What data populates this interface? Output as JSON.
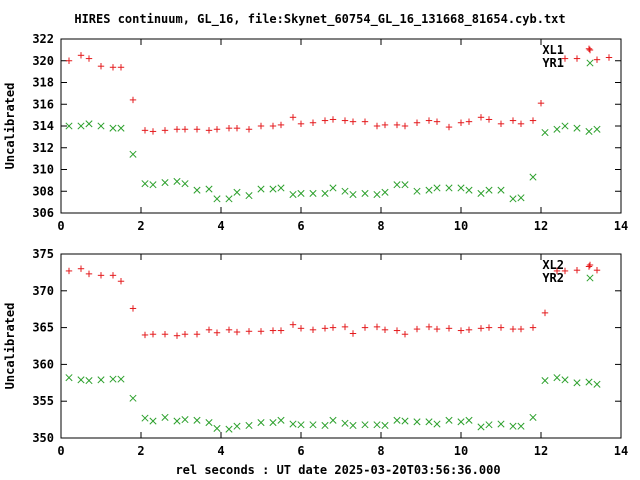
{
  "figure": {
    "title": "HIRES continuum, GL_16, file:Skynet_60754_GL_16_131668_81654.cyb.txt",
    "xlabel": "rel seconds : UT date 2025-03-20T03:56:36.000"
  },
  "colors": {
    "red": "#e41a1c",
    "green": "#2ca02c",
    "axis": "#000000"
  },
  "chart_data": [
    {
      "type": "scatter",
      "ylabel": "Uncalibrated",
      "xlim": [
        0,
        14
      ],
      "ylim": [
        306,
        322
      ],
      "xticks": [
        0,
        2,
        4,
        6,
        8,
        10,
        12,
        14
      ],
      "yticks": [
        306,
        308,
        310,
        312,
        314,
        316,
        318,
        320,
        322
      ],
      "legend_position": "top-right",
      "series": [
        {
          "name": "XL1",
          "marker": "plus",
          "color": "#e41a1c",
          "points": [
            [
              0.2,
              320.0
            ],
            [
              0.5,
              320.5
            ],
            [
              0.7,
              320.2
            ],
            [
              1.0,
              319.5
            ],
            [
              1.3,
              319.4
            ],
            [
              1.5,
              319.4
            ],
            [
              1.8,
              316.4
            ],
            [
              2.1,
              313.6
            ],
            [
              2.3,
              313.5
            ],
            [
              2.6,
              313.6
            ],
            [
              2.9,
              313.7
            ],
            [
              3.1,
              313.7
            ],
            [
              3.4,
              313.7
            ],
            [
              3.7,
              313.6
            ],
            [
              3.9,
              313.7
            ],
            [
              4.2,
              313.8
            ],
            [
              4.4,
              313.8
            ],
            [
              4.7,
              313.7
            ],
            [
              5.0,
              314.0
            ],
            [
              5.3,
              314.0
            ],
            [
              5.5,
              314.1
            ],
            [
              5.8,
              314.8
            ],
            [
              6.0,
              314.2
            ],
            [
              6.3,
              314.3
            ],
            [
              6.6,
              314.5
            ],
            [
              6.8,
              314.6
            ],
            [
              7.1,
              314.5
            ],
            [
              7.3,
              314.4
            ],
            [
              7.6,
              314.4
            ],
            [
              7.9,
              314.0
            ],
            [
              8.1,
              314.1
            ],
            [
              8.4,
              314.1
            ],
            [
              8.6,
              314.0
            ],
            [
              8.9,
              314.3
            ],
            [
              9.2,
              314.5
            ],
            [
              9.4,
              314.4
            ],
            [
              9.7,
              313.9
            ],
            [
              10.0,
              314.3
            ],
            [
              10.2,
              314.4
            ],
            [
              10.5,
              314.8
            ],
            [
              10.7,
              314.6
            ],
            [
              11.0,
              314.2
            ],
            [
              11.3,
              314.5
            ],
            [
              11.5,
              314.2
            ],
            [
              11.8,
              314.5
            ],
            [
              12.0,
              316.1
            ],
            [
              12.6,
              320.2
            ],
            [
              12.9,
              320.2
            ],
            [
              13.2,
              321.1
            ],
            [
              13.4,
              320.1
            ],
            [
              13.7,
              320.3
            ]
          ]
        },
        {
          "name": "YR1",
          "marker": "cross",
          "color": "#2ca02c",
          "points": [
            [
              0.2,
              314.0
            ],
            [
              0.5,
              314.0
            ],
            [
              0.7,
              314.2
            ],
            [
              1.0,
              314.0
            ],
            [
              1.3,
              313.8
            ],
            [
              1.5,
              313.8
            ],
            [
              1.8,
              311.4
            ],
            [
              2.1,
              308.7
            ],
            [
              2.3,
              308.6
            ],
            [
              2.6,
              308.8
            ],
            [
              2.9,
              308.9
            ],
            [
              3.1,
              308.7
            ],
            [
              3.4,
              308.1
            ],
            [
              3.7,
              308.2
            ],
            [
              3.9,
              307.3
            ],
            [
              4.2,
              307.3
            ],
            [
              4.4,
              307.9
            ],
            [
              4.7,
              307.6
            ],
            [
              5.0,
              308.2
            ],
            [
              5.3,
              308.2
            ],
            [
              5.5,
              308.3
            ],
            [
              5.8,
              307.7
            ],
            [
              6.0,
              307.8
            ],
            [
              6.3,
              307.8
            ],
            [
              6.6,
              307.8
            ],
            [
              6.8,
              308.3
            ],
            [
              7.1,
              308.0
            ],
            [
              7.3,
              307.7
            ],
            [
              7.6,
              307.8
            ],
            [
              7.9,
              307.7
            ],
            [
              8.1,
              307.9
            ],
            [
              8.4,
              308.6
            ],
            [
              8.6,
              308.6
            ],
            [
              8.9,
              308.0
            ],
            [
              9.2,
              308.1
            ],
            [
              9.4,
              308.3
            ],
            [
              9.7,
              308.3
            ],
            [
              10.0,
              308.3
            ],
            [
              10.2,
              308.1
            ],
            [
              10.5,
              307.8
            ],
            [
              10.7,
              308.1
            ],
            [
              11.0,
              308.1
            ],
            [
              11.3,
              307.3
            ],
            [
              11.5,
              307.4
            ],
            [
              11.8,
              309.3
            ],
            [
              12.1,
              313.4
            ],
            [
              12.4,
              313.7
            ],
            [
              12.6,
              314.0
            ],
            [
              12.9,
              313.8
            ],
            [
              13.2,
              313.5
            ],
            [
              13.4,
              313.7
            ]
          ]
        }
      ]
    },
    {
      "type": "scatter",
      "ylabel": "Uncalibrated",
      "xlim": [
        0,
        14
      ],
      "ylim": [
        350,
        375
      ],
      "xticks": [
        0,
        2,
        4,
        6,
        8,
        10,
        12,
        14
      ],
      "yticks": [
        350,
        355,
        360,
        365,
        370,
        375
      ],
      "legend_position": "top-right",
      "series": [
        {
          "name": "XL2",
          "marker": "plus",
          "color": "#e41a1c",
          "points": [
            [
              0.2,
              372.7
            ],
            [
              0.5,
              373.0
            ],
            [
              0.7,
              372.3
            ],
            [
              1.0,
              372.1
            ],
            [
              1.3,
              372.1
            ],
            [
              1.5,
              371.3
            ],
            [
              1.8,
              367.6
            ],
            [
              2.1,
              364.0
            ],
            [
              2.3,
              364.1
            ],
            [
              2.6,
              364.1
            ],
            [
              2.9,
              363.9
            ],
            [
              3.1,
              364.1
            ],
            [
              3.4,
              364.1
            ],
            [
              3.7,
              364.7
            ],
            [
              3.9,
              364.3
            ],
            [
              4.2,
              364.7
            ],
            [
              4.4,
              364.4
            ],
            [
              4.7,
              364.5
            ],
            [
              5.0,
              364.5
            ],
            [
              5.3,
              364.6
            ],
            [
              5.5,
              364.6
            ],
            [
              5.8,
              365.4
            ],
            [
              6.0,
              364.9
            ],
            [
              6.3,
              364.7
            ],
            [
              6.6,
              364.9
            ],
            [
              6.8,
              365.0
            ],
            [
              7.1,
              365.1
            ],
            [
              7.3,
              364.2
            ],
            [
              7.6,
              365.0
            ],
            [
              7.9,
              365.1
            ],
            [
              8.1,
              364.7
            ],
            [
              8.4,
              364.6
            ],
            [
              8.6,
              364.1
            ],
            [
              8.9,
              364.8
            ],
            [
              9.2,
              365.1
            ],
            [
              9.4,
              364.8
            ],
            [
              9.7,
              364.9
            ],
            [
              10.0,
              364.6
            ],
            [
              10.2,
              364.7
            ],
            [
              10.5,
              364.9
            ],
            [
              10.7,
              365.0
            ],
            [
              11.0,
              365.0
            ],
            [
              11.3,
              364.8
            ],
            [
              11.5,
              364.8
            ],
            [
              11.8,
              365.0
            ],
            [
              12.1,
              367.0
            ],
            [
              12.4,
              372.7
            ],
            [
              12.6,
              372.7
            ],
            [
              12.9,
              372.8
            ],
            [
              13.2,
              373.3
            ],
            [
              13.4,
              372.8
            ]
          ]
        },
        {
          "name": "YR2",
          "marker": "cross",
          "color": "#2ca02c",
          "points": [
            [
              0.2,
              358.2
            ],
            [
              0.5,
              357.9
            ],
            [
              0.7,
              357.8
            ],
            [
              1.0,
              357.9
            ],
            [
              1.3,
              358.0
            ],
            [
              1.5,
              358.0
            ],
            [
              1.8,
              355.4
            ],
            [
              2.1,
              352.7
            ],
            [
              2.3,
              352.3
            ],
            [
              2.6,
              352.8
            ],
            [
              2.9,
              352.3
            ],
            [
              3.1,
              352.5
            ],
            [
              3.4,
              352.4
            ],
            [
              3.7,
              352.1
            ],
            [
              3.9,
              351.3
            ],
            [
              4.2,
              351.2
            ],
            [
              4.4,
              351.6
            ],
            [
              4.7,
              351.7
            ],
            [
              5.0,
              352.1
            ],
            [
              5.3,
              352.1
            ],
            [
              5.5,
              352.4
            ],
            [
              5.8,
              351.9
            ],
            [
              6.0,
              351.8
            ],
            [
              6.3,
              351.8
            ],
            [
              6.6,
              351.7
            ],
            [
              6.8,
              352.4
            ],
            [
              7.1,
              352.0
            ],
            [
              7.3,
              351.7
            ],
            [
              7.6,
              351.8
            ],
            [
              7.9,
              351.8
            ],
            [
              8.1,
              351.7
            ],
            [
              8.4,
              352.4
            ],
            [
              8.6,
              352.3
            ],
            [
              8.9,
              352.2
            ],
            [
              9.2,
              352.2
            ],
            [
              9.4,
              351.9
            ],
            [
              9.7,
              352.4
            ],
            [
              10.0,
              352.2
            ],
            [
              10.2,
              352.4
            ],
            [
              10.5,
              351.5
            ],
            [
              10.7,
              351.8
            ],
            [
              11.0,
              351.9
            ],
            [
              11.3,
              351.6
            ],
            [
              11.5,
              351.6
            ],
            [
              11.8,
              352.8
            ],
            [
              12.1,
              357.8
            ],
            [
              12.4,
              358.2
            ],
            [
              12.6,
              357.9
            ],
            [
              12.9,
              357.5
            ],
            [
              13.2,
              357.6
            ],
            [
              13.4,
              357.3
            ]
          ]
        }
      ]
    }
  ]
}
